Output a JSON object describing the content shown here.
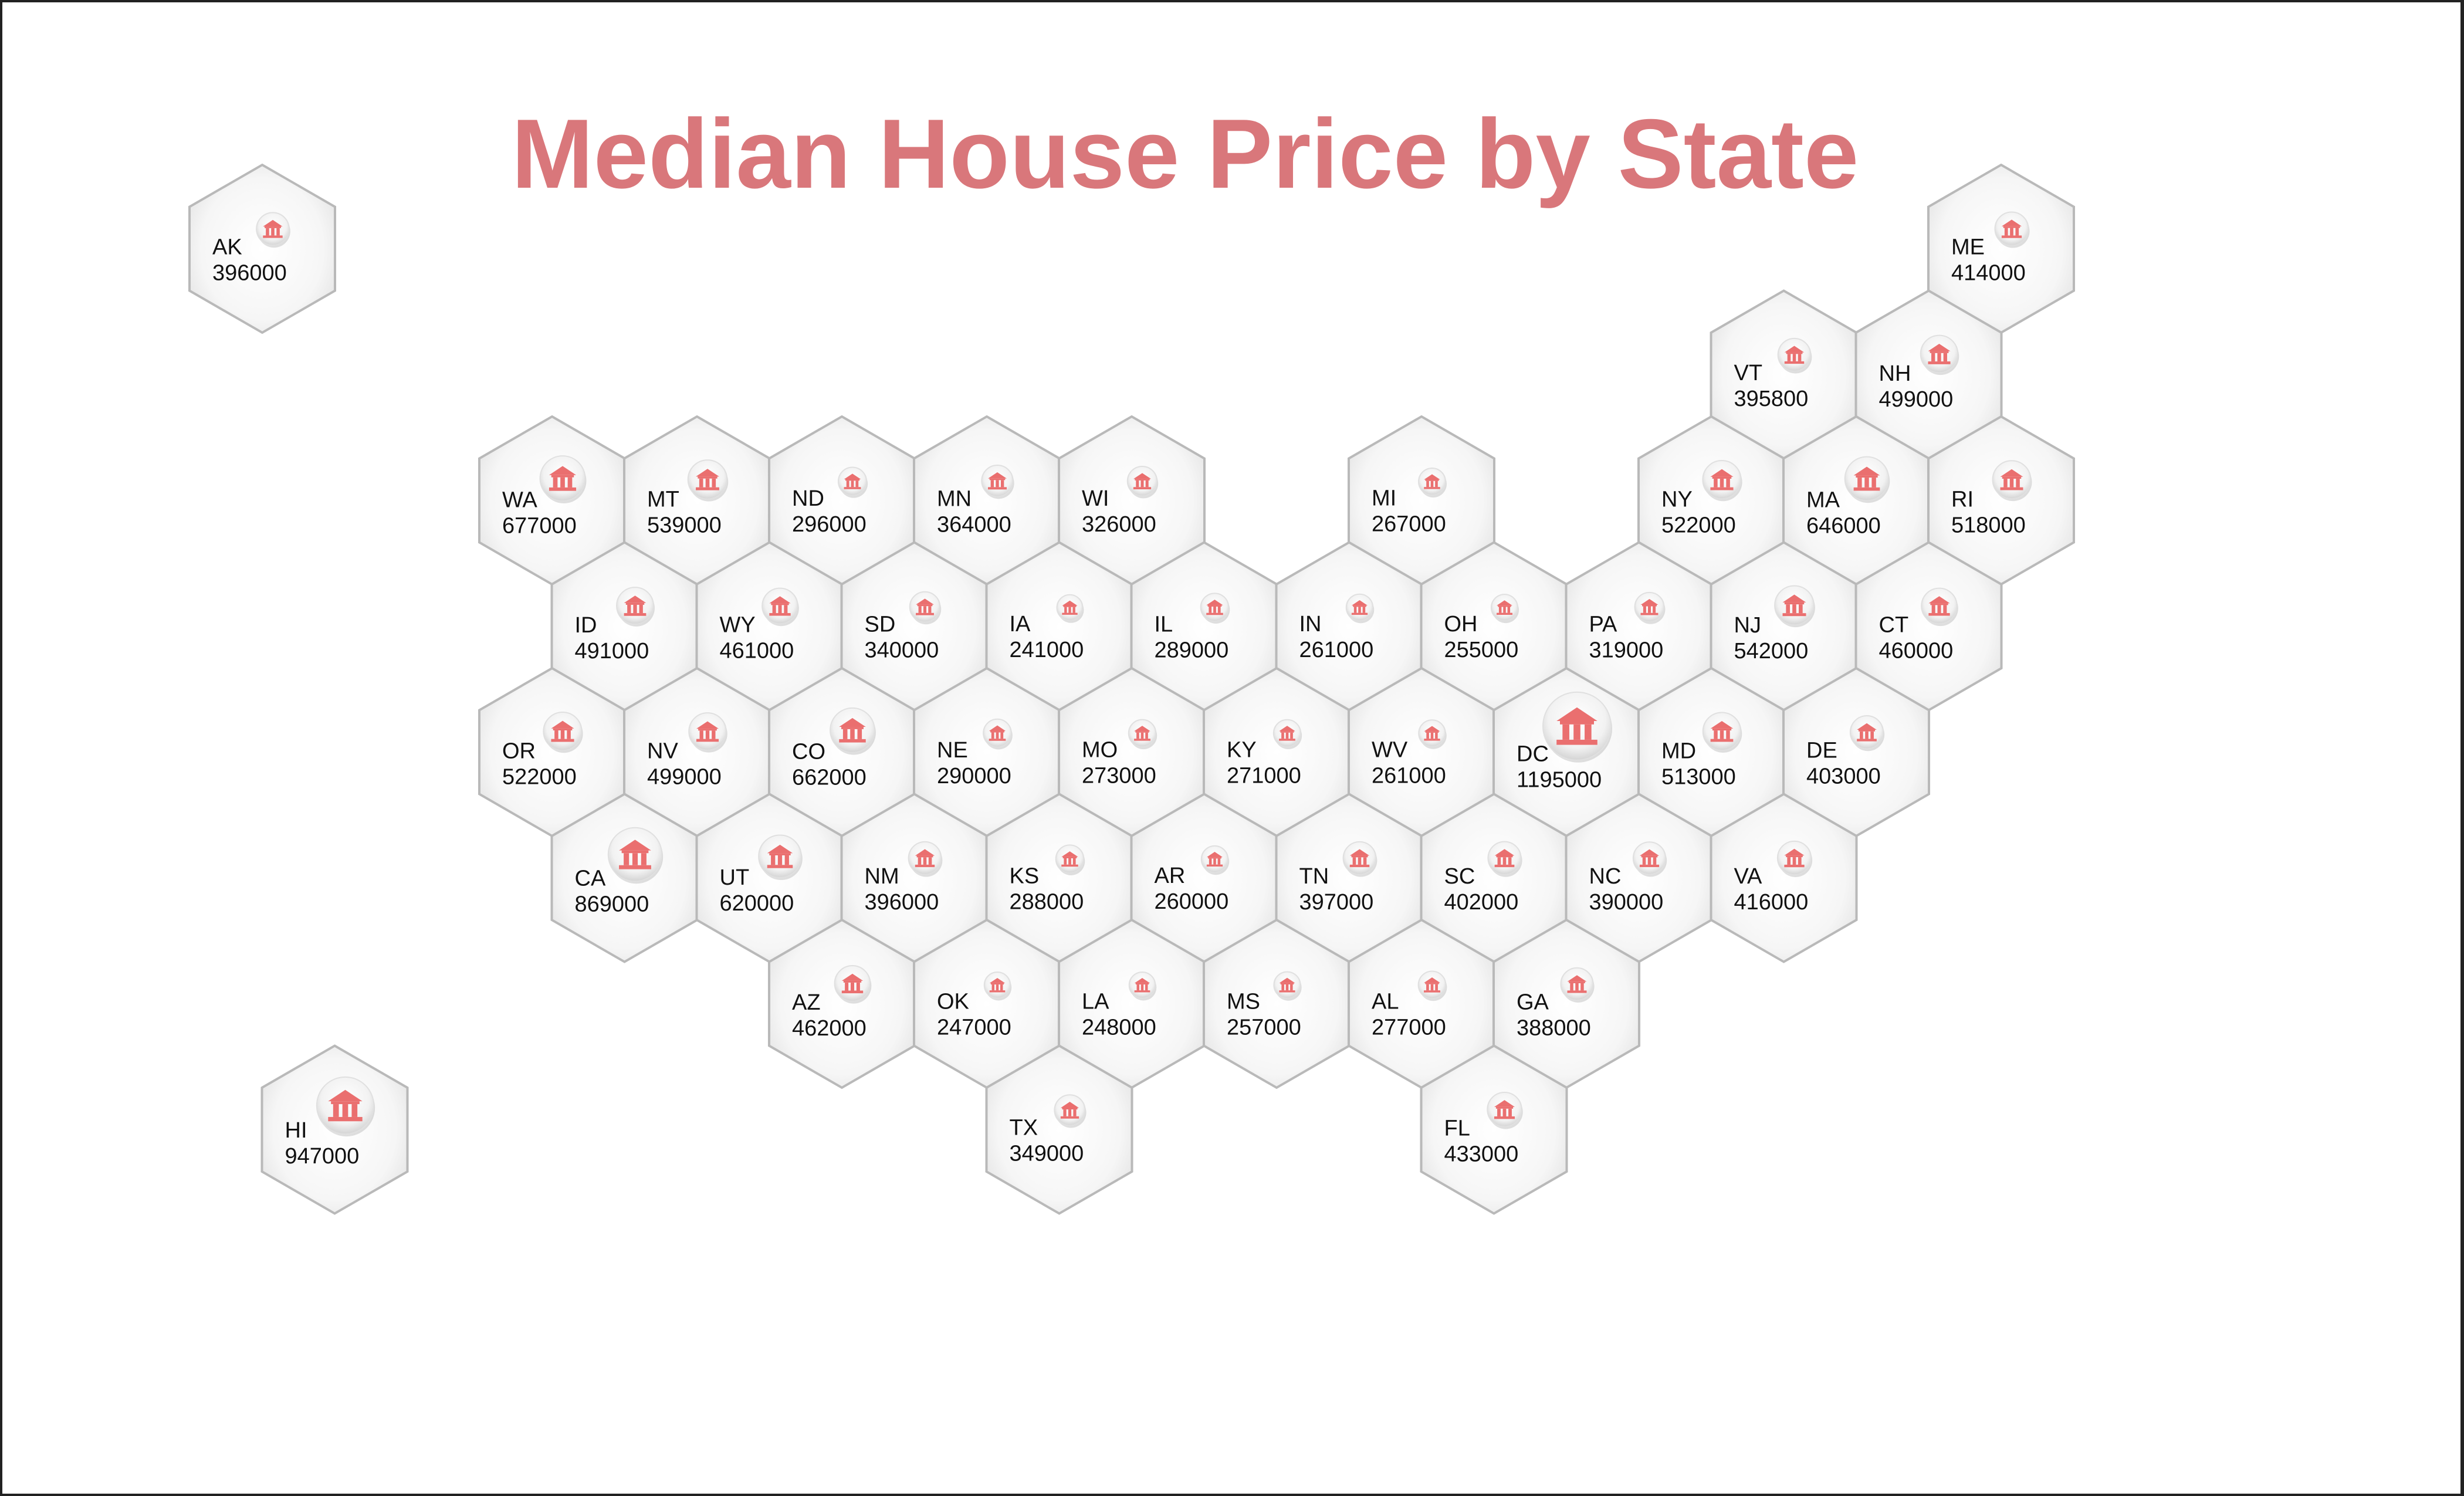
{
  "title": "Median House Price by State",
  "colors": {
    "title": "#d9777b",
    "marker": "#ea6f6f",
    "hex_stroke": "#b9b9b9"
  },
  "icon": "house-icon",
  "chart_data": {
    "type": "hex-tile-map",
    "title": "Median House Price by State",
    "marker": "bubble sized by value",
    "states": [
      {
        "code": "AK",
        "value": 396000,
        "col": 0,
        "row": 0
      },
      {
        "code": "ME",
        "value": 414000,
        "col": 24,
        "row": 0
      },
      {
        "code": "VT",
        "value": 395800,
        "col": 21,
        "row": 1
      },
      {
        "code": "NH",
        "value": 499000,
        "col": 23,
        "row": 1
      },
      {
        "code": "WA",
        "value": 677000,
        "col": 4,
        "row": 2
      },
      {
        "code": "MT",
        "value": 539000,
        "col": 6,
        "row": 2
      },
      {
        "code": "ND",
        "value": 296000,
        "col": 8,
        "row": 2
      },
      {
        "code": "MN",
        "value": 364000,
        "col": 10,
        "row": 2
      },
      {
        "code": "WI",
        "value": 326000,
        "col": 12,
        "row": 2
      },
      {
        "code": "MI",
        "value": 267000,
        "col": 16,
        "row": 2
      },
      {
        "code": "NY",
        "value": 522000,
        "col": 20,
        "row": 2
      },
      {
        "code": "MA",
        "value": 646000,
        "col": 22,
        "row": 2
      },
      {
        "code": "RI",
        "value": 518000,
        "col": 24,
        "row": 2
      },
      {
        "code": "ID",
        "value": 491000,
        "col": 5,
        "row": 3
      },
      {
        "code": "WY",
        "value": 461000,
        "col": 7,
        "row": 3
      },
      {
        "code": "SD",
        "value": 340000,
        "col": 9,
        "row": 3
      },
      {
        "code": "IA",
        "value": 241000,
        "col": 11,
        "row": 3
      },
      {
        "code": "IL",
        "value": 289000,
        "col": 13,
        "row": 3
      },
      {
        "code": "IN",
        "value": 261000,
        "col": 15,
        "row": 3
      },
      {
        "code": "OH",
        "value": 255000,
        "col": 17,
        "row": 3
      },
      {
        "code": "PA",
        "value": 319000,
        "col": 19,
        "row": 3
      },
      {
        "code": "NJ",
        "value": 542000,
        "col": 21,
        "row": 3
      },
      {
        "code": "CT",
        "value": 460000,
        "col": 23,
        "row": 3
      },
      {
        "code": "OR",
        "value": 522000,
        "col": 4,
        "row": 4
      },
      {
        "code": "NV",
        "value": 499000,
        "col": 6,
        "row": 4
      },
      {
        "code": "CO",
        "value": 662000,
        "col": 8,
        "row": 4
      },
      {
        "code": "NE",
        "value": 290000,
        "col": 10,
        "row": 4
      },
      {
        "code": "MO",
        "value": 273000,
        "col": 12,
        "row": 4
      },
      {
        "code": "KY",
        "value": 271000,
        "col": 14,
        "row": 4
      },
      {
        "code": "WV",
        "value": 261000,
        "col": 16,
        "row": 4
      },
      {
        "code": "DC",
        "value": 1195000,
        "col": 18,
        "row": 4
      },
      {
        "code": "MD",
        "value": 513000,
        "col": 20,
        "row": 4
      },
      {
        "code": "DE",
        "value": 403000,
        "col": 22,
        "row": 4
      },
      {
        "code": "CA",
        "value": 869000,
        "col": 5,
        "row": 5
      },
      {
        "code": "UT",
        "value": 620000,
        "col": 7,
        "row": 5
      },
      {
        "code": "NM",
        "value": 396000,
        "col": 9,
        "row": 5
      },
      {
        "code": "KS",
        "value": 288000,
        "col": 11,
        "row": 5
      },
      {
        "code": "AR",
        "value": 260000,
        "col": 13,
        "row": 5
      },
      {
        "code": "TN",
        "value": 397000,
        "col": 15,
        "row": 5
      },
      {
        "code": "SC",
        "value": 402000,
        "col": 17,
        "row": 5
      },
      {
        "code": "NC",
        "value": 390000,
        "col": 19,
        "row": 5
      },
      {
        "code": "VA",
        "value": 416000,
        "col": 21,
        "row": 5
      },
      {
        "code": "AZ",
        "value": 462000,
        "col": 8,
        "row": 6
      },
      {
        "code": "OK",
        "value": 247000,
        "col": 10,
        "row": 6
      },
      {
        "code": "LA",
        "value": 248000,
        "col": 12,
        "row": 6
      },
      {
        "code": "MS",
        "value": 257000,
        "col": 14,
        "row": 6
      },
      {
        "code": "AL",
        "value": 277000,
        "col": 16,
        "row": 6
      },
      {
        "code": "GA",
        "value": 388000,
        "col": 18,
        "row": 6
      },
      {
        "code": "TX",
        "value": 349000,
        "col": 11,
        "row": 7
      },
      {
        "code": "FL",
        "value": 433000,
        "col": 17,
        "row": 7
      },
      {
        "code": "HI",
        "value": 947000,
        "col": 1,
        "row": 7
      }
    ]
  }
}
